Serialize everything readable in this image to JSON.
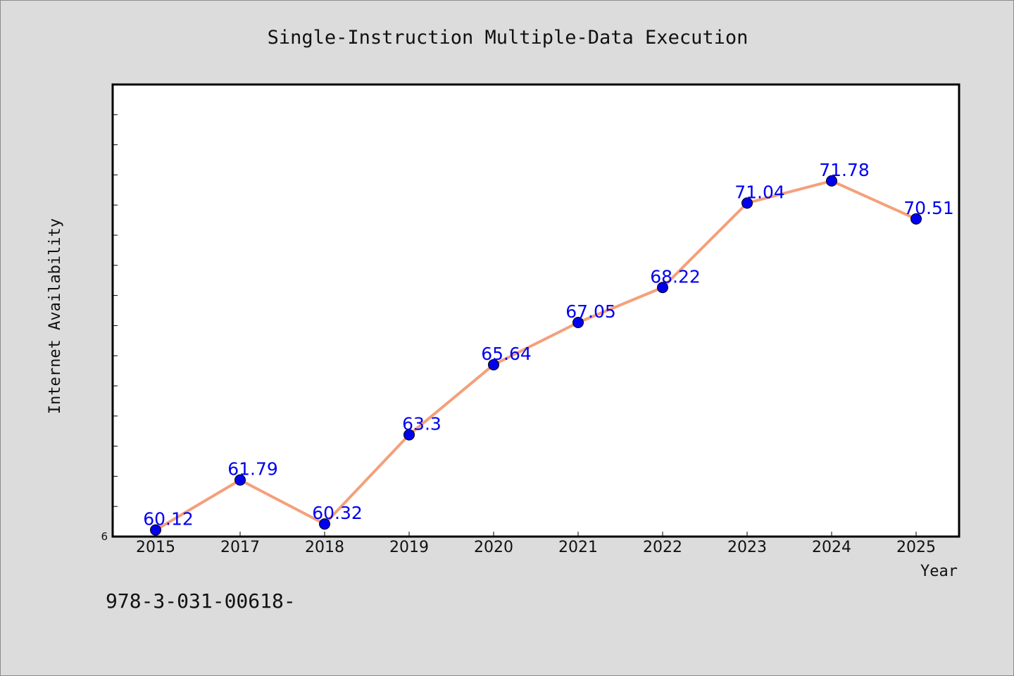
{
  "chart_data": {
    "type": "line",
    "title": "Single-Instruction Multiple-Data Execution",
    "xlabel": "Year",
    "ylabel": "Internet Availability",
    "categories": [
      "2015",
      "2017",
      "2018",
      "2019",
      "2020",
      "2021",
      "2022",
      "2023",
      "2024",
      "2025"
    ],
    "series": [
      {
        "values": [
          60.12,
          61.79,
          60.32,
          63.3,
          65.64,
          67.05,
          68.22,
          71.04,
          71.78,
          70.51
        ],
        "data_labels": [
          "60.12",
          "61.79",
          "60.32",
          "63.3",
          "65.64",
          "67.05",
          "68.22",
          "71.04",
          "71.78",
          "70.51"
        ]
      }
    ],
    "y_tick_labels": [
      "6"
    ],
    "ylim": [
      59.9,
      75
    ],
    "grid": false,
    "line_color": "#f4a07a",
    "marker_color": "#0000ee",
    "label_color": "#0000ee"
  },
  "footer": {
    "code": "978-3-031-00618-"
  }
}
